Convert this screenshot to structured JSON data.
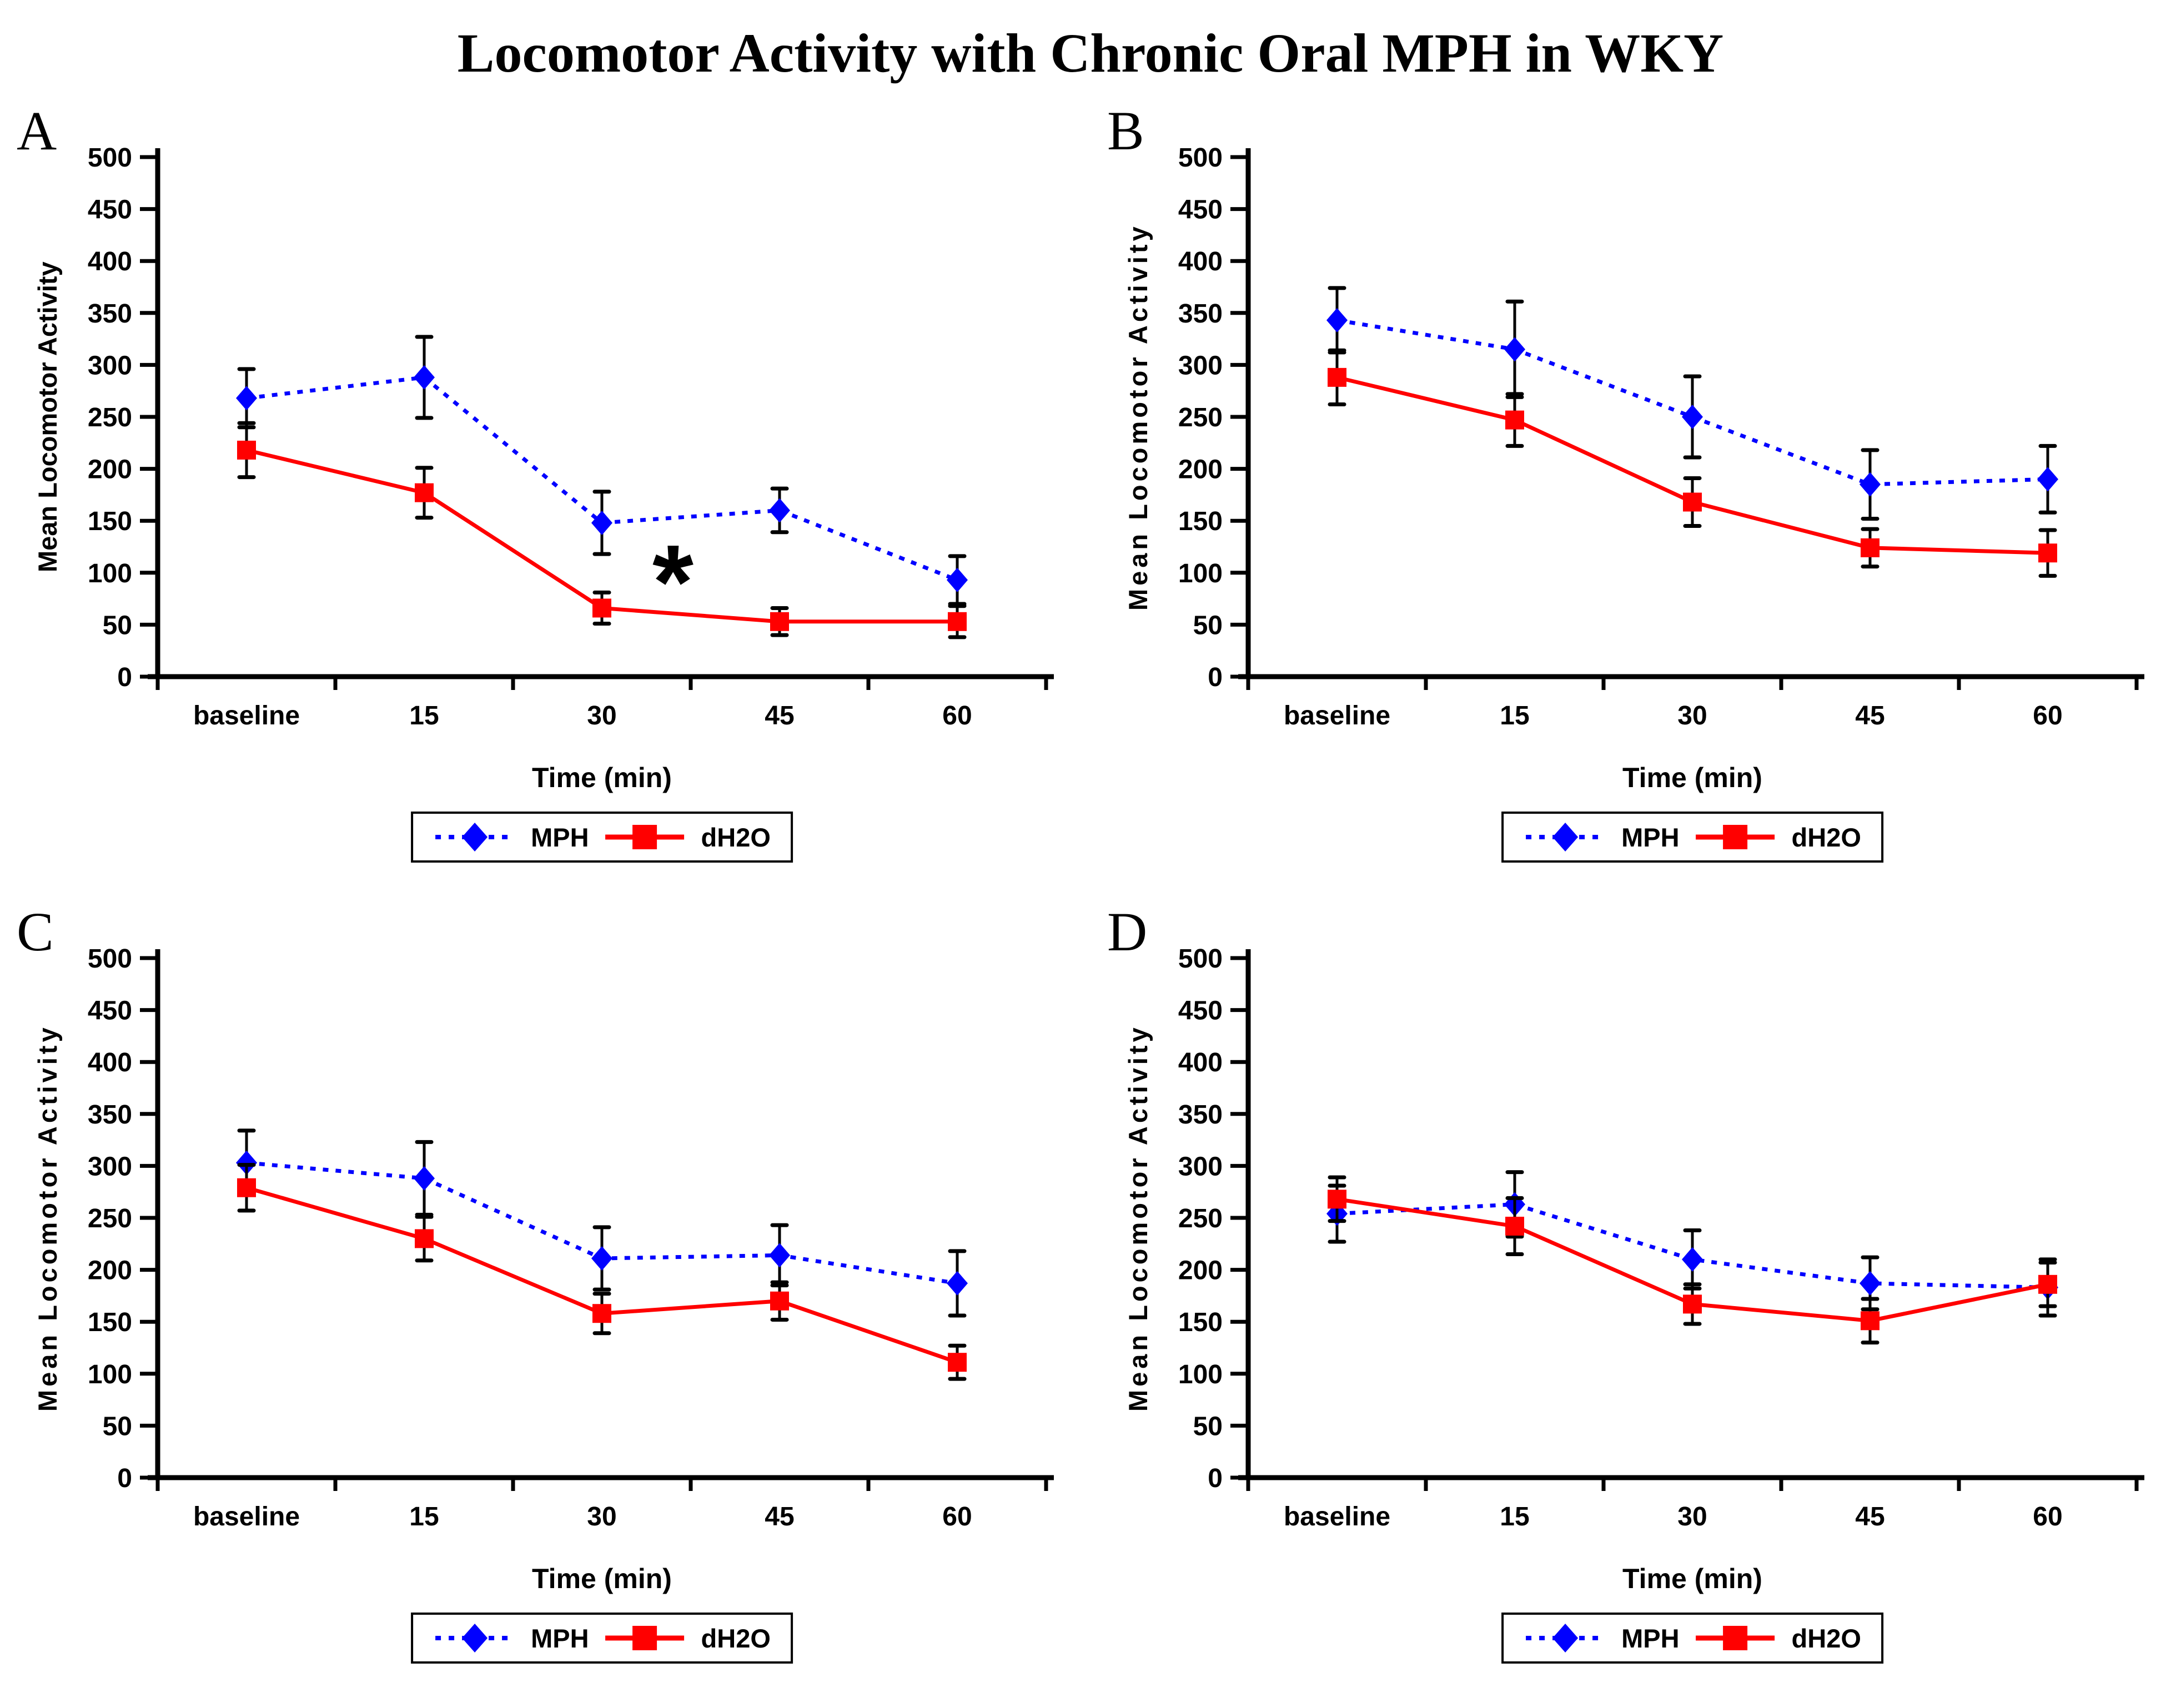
{
  "figure": {
    "title": "Locomotor Activity with Chronic Oral MPH in WKY"
  },
  "colors": {
    "mph_blue": "#0000FF",
    "dh2o_red": "#FF0000",
    "axis_black": "#000000",
    "background": "#FFFFFF"
  },
  "axes": {
    "ylabel": "Mean Locomotor Activity",
    "xlabel": "Time (min)",
    "ylim": [
      0,
      500
    ],
    "yticks": [
      0,
      50,
      100,
      150,
      200,
      250,
      300,
      350,
      400,
      450,
      500
    ],
    "categories": [
      "baseline",
      "15",
      "30",
      "45",
      "60"
    ],
    "grid": false
  },
  "legend": {
    "position": "below-chart",
    "entries": [
      {
        "label": "MPH",
        "marker": "diamond",
        "line": "dotted",
        "color": "#0000FF"
      },
      {
        "label": "dH2O",
        "marker": "square",
        "line": "solid",
        "color": "#FF0000"
      }
    ]
  },
  "chart_data": [
    {
      "panel": "A",
      "type": "line",
      "categories": [
        "baseline",
        "15",
        "30",
        "45",
        "60"
      ],
      "ylim": [
        0,
        500
      ],
      "series": [
        {
          "name": "MPH",
          "color": "#0000FF",
          "marker": "diamond",
          "line_style": "dotted",
          "values": [
            268,
            288,
            148,
            160,
            93
          ],
          "errors": [
            28,
            39,
            30,
            21,
            23
          ]
        },
        {
          "name": "dH2O",
          "color": "#FF0000",
          "marker": "square",
          "line_style": "solid",
          "values": [
            218,
            177,
            66,
            53,
            53
          ],
          "errors": [
            26,
            24,
            15,
            13,
            15
          ]
        }
      ],
      "annotation": {
        "text": "*",
        "between_categories": [
          "30",
          "45"
        ],
        "x_index": 2.4,
        "y": 108
      }
    },
    {
      "panel": "B",
      "type": "line",
      "categories": [
        "baseline",
        "15",
        "30",
        "45",
        "60"
      ],
      "ylim": [
        0,
        500
      ],
      "series": [
        {
          "name": "MPH",
          "color": "#0000FF",
          "marker": "diamond",
          "line_style": "dotted",
          "values": [
            343,
            315,
            250,
            185,
            190
          ],
          "errors": [
            31,
            46,
            39,
            33,
            32
          ]
        },
        {
          "name": "dH2O",
          "color": "#FF0000",
          "marker": "square",
          "line_style": "solid",
          "values": [
            288,
            247,
            168,
            124,
            119
          ],
          "errors": [
            26,
            25,
            23,
            18,
            22
          ]
        }
      ],
      "annotation": null
    },
    {
      "panel": "C",
      "type": "line",
      "categories": [
        "baseline",
        "15",
        "30",
        "45",
        "60"
      ],
      "ylim": [
        0,
        500
      ],
      "series": [
        {
          "name": "MPH",
          "color": "#0000FF",
          "marker": "diamond",
          "line_style": "dotted",
          "values": [
            303,
            288,
            211,
            214,
            187
          ],
          "errors": [
            31,
            35,
            30,
            29,
            31
          ]
        },
        {
          "name": "dH2O",
          "color": "#FF0000",
          "marker": "square",
          "line_style": "solid",
          "values": [
            279,
            230,
            158,
            170,
            111
          ],
          "errors": [
            22,
            21,
            19,
            18,
            16
          ]
        }
      ],
      "annotation": null
    },
    {
      "panel": "D",
      "type": "line",
      "categories": [
        "baseline",
        "15",
        "30",
        "45",
        "60"
      ],
      "ylim": [
        0,
        500
      ],
      "series": [
        {
          "name": "MPH",
          "color": "#0000FF",
          "marker": "diamond",
          "line_style": "dotted",
          "values": [
            254,
            263,
            210,
            187,
            183
          ],
          "errors": [
            27,
            31,
            28,
            25,
            27
          ]
        },
        {
          "name": "dH2O",
          "color": "#FF0000",
          "marker": "square",
          "line_style": "solid",
          "values": [
            268,
            242,
            167,
            151,
            186
          ],
          "errors": [
            21,
            27,
            19,
            21,
            21
          ]
        }
      ],
      "annotation": null
    }
  ]
}
